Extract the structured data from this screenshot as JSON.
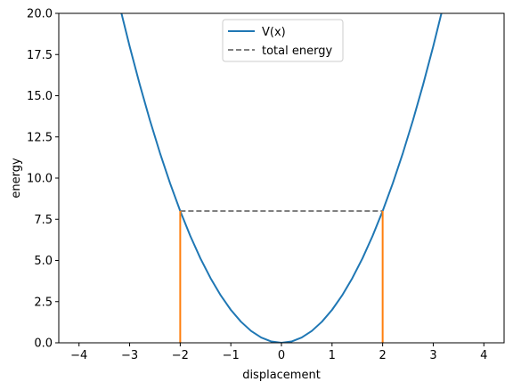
{
  "chart_data": {
    "type": "line",
    "xlabel": "displacement",
    "ylabel": "energy",
    "xlim": [
      -4.4,
      4.4
    ],
    "ylim": [
      0,
      20
    ],
    "xticks": [
      -4,
      -3,
      -2,
      -1,
      0,
      1,
      2,
      3,
      4
    ],
    "xtick_labels": [
      "−4",
      "−3",
      "−2",
      "−1",
      "0",
      "1",
      "2",
      "3",
      "4"
    ],
    "yticks": [
      0,
      2.5,
      5,
      7.5,
      10,
      12.5,
      15,
      17.5,
      20
    ],
    "ytick_labels": [
      "0.0",
      "2.5",
      "5.0",
      "7.5",
      "10.0",
      "12.5",
      "15.0",
      "17.5",
      "20.0"
    ],
    "grid": false,
    "legend_position": "top-center",
    "series": [
      {
        "name": "V(x)",
        "style": "solid",
        "color": "#1f77b4",
        "x": [
          -3.2,
          -3.0,
          -2.8,
          -2.6,
          -2.4,
          -2.2,
          -2.0,
          -1.8,
          -1.6,
          -1.4,
          -1.2,
          -1.0,
          -0.8,
          -0.6,
          -0.4,
          -0.2,
          0.0,
          0.2,
          0.4,
          0.6,
          0.8,
          1.0,
          1.2,
          1.4,
          1.6,
          1.8,
          2.0,
          2.2,
          2.4,
          2.6,
          2.8,
          3.0,
          3.2
        ],
        "y": [
          20.48,
          18.0,
          15.68,
          13.52,
          11.52,
          9.68,
          8.0,
          6.48,
          5.12,
          3.92,
          2.88,
          2.0,
          1.28,
          0.72,
          0.32,
          0.08,
          0.0,
          0.08,
          0.32,
          0.72,
          1.28,
          2.0,
          2.88,
          3.92,
          5.12,
          6.48,
          8.0,
          9.68,
          11.52,
          13.52,
          15.68,
          18.0,
          20.48
        ]
      },
      {
        "name": "total energy",
        "style": "dashed",
        "color": "#808080",
        "x": [
          -2.0,
          2.0
        ],
        "y": [
          8.0,
          8.0
        ]
      },
      {
        "name": "",
        "style": "solid",
        "color": "#ff7f0e",
        "x": [
          -2.0,
          -2.0
        ],
        "y": [
          0,
          8.0
        ]
      },
      {
        "name": "",
        "style": "solid",
        "color": "#ff7f0e",
        "x": [
          2.0,
          2.0
        ],
        "y": [
          0,
          8.0
        ]
      }
    ]
  }
}
